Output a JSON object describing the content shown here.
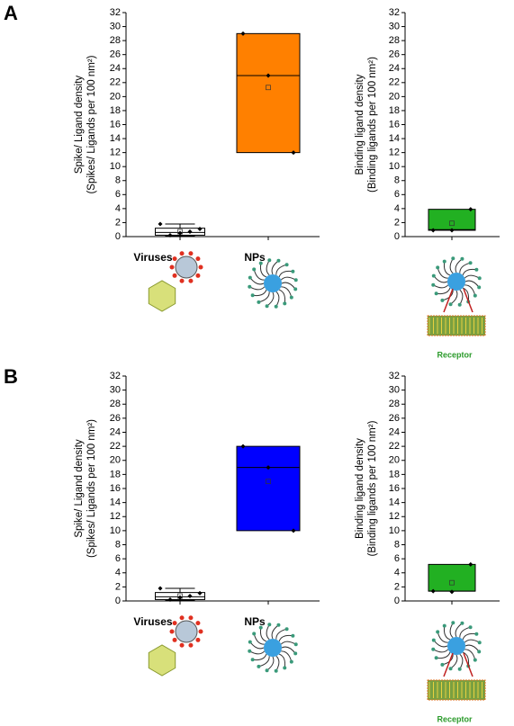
{
  "chart_data": [
    {
      "type": "box",
      "panel": "A",
      "ylabel": [
        "Spike/ Ligand density",
        "(Spikes/ Ligands per 100 nm²)"
      ],
      "ylim": [
        0,
        32
      ],
      "yticks": [
        0,
        2,
        4,
        6,
        8,
        10,
        12,
        14,
        16,
        18,
        20,
        22,
        24,
        26,
        28,
        30,
        32
      ],
      "categories": [
        "Viruses",
        "NPs"
      ],
      "boxes": [
        {
          "q1": 0.2,
          "median": 0.6,
          "q3": 1.2,
          "mean": 0.7,
          "whisker_low": 0.1,
          "whisker_high": 1.8,
          "points": [
            1.8,
            0.2,
            0.5,
            0.7,
            1.1
          ],
          "color": "#ffffff"
        },
        {
          "q1": 12,
          "median": 23,
          "q3": 29,
          "mean": 21.3,
          "points": [
            29,
            23,
            12
          ],
          "color": "#ff8000"
        }
      ]
    },
    {
      "type": "box",
      "ylabel": [
        "Binding ligand density",
        "(Binding ligands per 100 nm²)"
      ],
      "ylim": [
        0,
        32
      ],
      "yticks": [
        0,
        2,
        4,
        6,
        8,
        10,
        12,
        14,
        16,
        18,
        20,
        22,
        24,
        26,
        28,
        30,
        32
      ],
      "annotation": "Receptor",
      "boxes": [
        {
          "q1": 0.9,
          "median": 1.0,
          "q3": 3.9,
          "mean": 1.9,
          "points": [
            0.9,
            0.9,
            3.9
          ],
          "color": "#22b022"
        }
      ]
    },
    {
      "type": "box",
      "panel": "B",
      "ylabel": [
        "Spike/ Ligand density",
        "(Spikes/ Ligands per 100 nm²)"
      ],
      "ylim": [
        0,
        32
      ],
      "yticks": [
        0,
        2,
        4,
        6,
        8,
        10,
        12,
        14,
        16,
        18,
        20,
        22,
        24,
        26,
        28,
        30,
        32
      ],
      "categories": [
        "Viruses",
        "NPs"
      ],
      "boxes": [
        {
          "q1": 0.2,
          "median": 0.6,
          "q3": 1.2,
          "mean": 0.7,
          "whisker_low": 0.1,
          "whisker_high": 1.8,
          "points": [
            1.8,
            0.2,
            0.5,
            0.7,
            1.1
          ],
          "color": "#ffffff"
        },
        {
          "q1": 10,
          "median": 19,
          "q3": 22,
          "mean": 17,
          "points": [
            22,
            19,
            10
          ],
          "color": "#0000ff"
        }
      ]
    },
    {
      "type": "box",
      "ylabel": [
        "Binding ligand density",
        "(Binding ligands per 100 nm²)"
      ],
      "ylim": [
        0,
        32
      ],
      "yticks": [
        0,
        2,
        4,
        6,
        8,
        10,
        12,
        14,
        16,
        18,
        20,
        22,
        24,
        26,
        28,
        30,
        32
      ],
      "annotation": "Receptor",
      "boxes": [
        {
          "q1": 1.4,
          "median": 1.4,
          "q3": 5.2,
          "mean": 2.6,
          "points": [
            1.4,
            1.3,
            5.2
          ],
          "color": "#22b022"
        }
      ]
    }
  ]
}
